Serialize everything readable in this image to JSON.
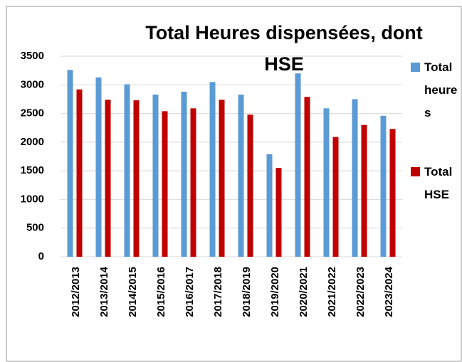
{
  "chart_data": {
    "type": "bar",
    "title": "Total Heures dispensées, dont HSE",
    "categories": [
      "2012/2013",
      "2013/2014",
      "2014/2015",
      "2015/2016",
      "2016/2017",
      "2017/2018",
      "2018/2019",
      "2019/2020",
      "2020/2021",
      "2021/2022",
      "2022/2023",
      "2023/2024"
    ],
    "series": [
      {
        "name": "Total heures",
        "color": "#5b9bd5",
        "values": [
          3260,
          3130,
          3010,
          2830,
          2880,
          3050,
          2830,
          1790,
          3200,
          2590,
          2750,
          2460
        ]
      },
      {
        "name": "Total HSE",
        "color": "#c00000",
        "values": [
          2920,
          2740,
          2730,
          2540,
          2590,
          2740,
          2480,
          1550,
          2790,
          2090,
          2300,
          2230
        ]
      }
    ],
    "ylim": [
      0,
      3500
    ],
    "yticks": [
      0,
      500,
      1000,
      1500,
      2000,
      2500,
      3000,
      3500
    ],
    "grid": true,
    "legend": "right"
  }
}
